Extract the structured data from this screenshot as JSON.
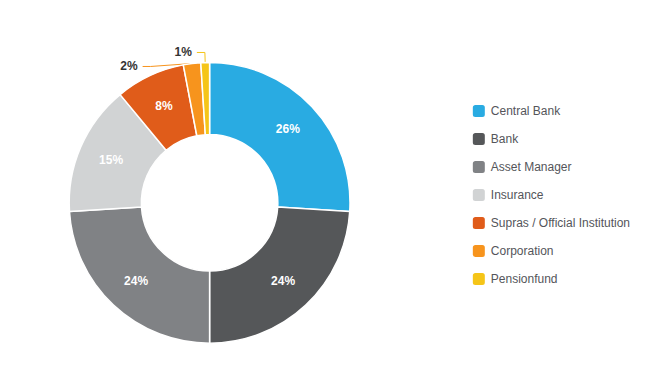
{
  "chart_data": {
    "type": "pie",
    "categories": [
      "Central Bank",
      "Bank",
      "Asset Manager",
      "Insurance",
      "Supras / Official Institution",
      "Corporation",
      "Pensionfund"
    ],
    "values": [
      26,
      24,
      24,
      15,
      8,
      2,
      1
    ],
    "value_labels": [
      "26%",
      "24%",
      "24%",
      "15%",
      "8%",
      "2%",
      "1%"
    ],
    "colors": [
      "#29ABE2",
      "#555759",
      "#808285",
      "#D1D3D4",
      "#E05C1A",
      "#F7941D",
      "#F5C518"
    ],
    "data_labels": true,
    "legend": "right"
  }
}
